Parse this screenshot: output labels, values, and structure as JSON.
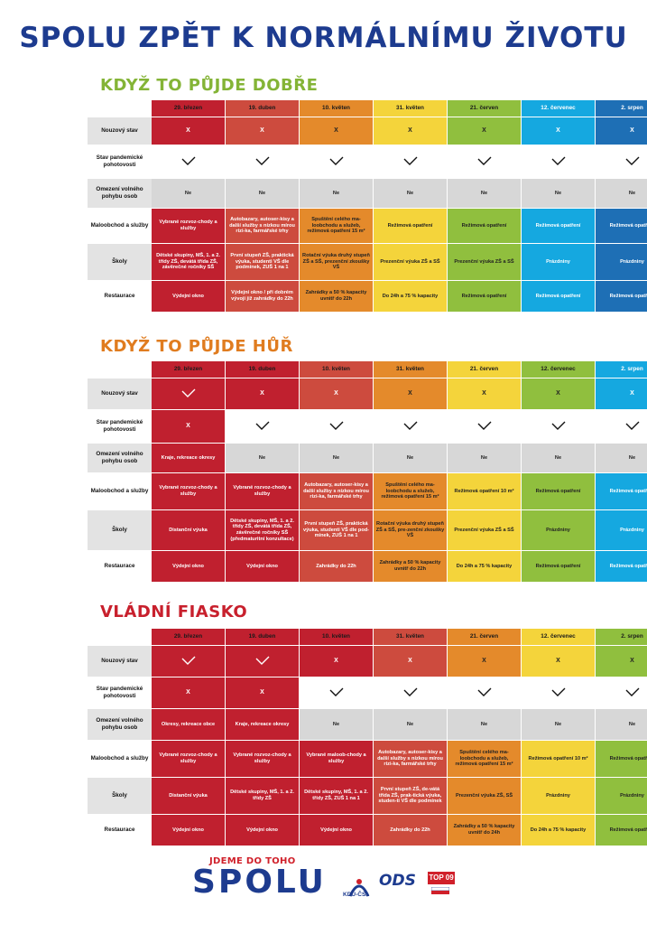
{
  "title": "SPOLU ZPĚT K NORMÁLNÍMU ŽIVOTU",
  "row_labels": [
    "Nouzový stav",
    "Stav pandemické pohotovosti",
    "Omezení volného pohybu osob",
    "Maloobchod a služby",
    "Školy",
    "Restaurace"
  ],
  "colors": {
    "red": "#c0202f",
    "brick": "#cd4b3e",
    "orange": "#e48a2b",
    "yellow": "#f4d43b",
    "green": "#90bf3e",
    "cyan": "#15a8e0",
    "blue": "#1e6fb5",
    "grey": "#d7d7d7",
    "title_blue": "#1d3b8f",
    "title_green": "#84b436",
    "title_orange": "#e07c1f",
    "title_red": "#c8202d"
  },
  "sections": [
    {
      "title": "KDYŽ TO PŮJDE DOBŘE",
      "title_color": "green",
      "columns": [
        {
          "label": "29. březen",
          "color": "red"
        },
        {
          "label": "19. duben",
          "color": "brick"
        },
        {
          "label": "10. květen",
          "color": "orange"
        },
        {
          "label": "31. květen",
          "color": "yellow"
        },
        {
          "label": "21. červen",
          "color": "green"
        },
        {
          "label": "12. červenec",
          "color": "cyan"
        },
        {
          "label": "2. srpen",
          "color": "blue"
        }
      ],
      "rows": [
        [
          {
            "t": "X",
            "c": "red"
          },
          {
            "t": "X",
            "c": "brick"
          },
          {
            "t": "X",
            "c": "orange"
          },
          {
            "t": "X",
            "c": "yellow"
          },
          {
            "t": "X",
            "c": "green"
          },
          {
            "t": "X",
            "c": "cyan"
          },
          {
            "t": "X",
            "c": "blue"
          }
        ],
        [
          {
            "t": "✓",
            "c": ""
          },
          {
            "t": "✓",
            "c": ""
          },
          {
            "t": "✓",
            "c": ""
          },
          {
            "t": "✓",
            "c": ""
          },
          {
            "t": "✓",
            "c": ""
          },
          {
            "t": "✓",
            "c": ""
          },
          {
            "t": "✓",
            "c": ""
          }
        ],
        [
          {
            "t": "Ne",
            "c": "grey"
          },
          {
            "t": "Ne",
            "c": "grey"
          },
          {
            "t": "Ne",
            "c": "grey"
          },
          {
            "t": "Ne",
            "c": "grey"
          },
          {
            "t": "Ne",
            "c": "grey"
          },
          {
            "t": "Ne",
            "c": "grey"
          },
          {
            "t": "Ne",
            "c": "grey"
          }
        ],
        [
          {
            "t": "Vybrané rozvoz-chody a služby",
            "c": "red"
          },
          {
            "t": "Autobazary, autoser-kisy a další služby s nízkou mírou rizi-ka, farmářské trhy",
            "c": "brick"
          },
          {
            "t": "Spuštění celého ma-loobchodu a služeb, režimová opatření 15 m²",
            "c": "orange"
          },
          {
            "t": "Režimová opatření",
            "c": "yellow"
          },
          {
            "t": "Režimová opatření",
            "c": "green"
          },
          {
            "t": "Režimová opatření",
            "c": "cyan"
          },
          {
            "t": "Režimová opatření",
            "c": "blue"
          }
        ],
        [
          {
            "t": "Dětské skupiny, MŠ, 1. a 2. třídy ZŠ, devátá třída ZŠ, závěrečné ročníky SŠ",
            "c": "red"
          },
          {
            "t": "První stupeň ZŠ, praktická výuka, studenti VŠ dle podmínek, ZUŠ 1 na 1",
            "c": "brick"
          },
          {
            "t": "Rotační výuka druhý stupeň ZŠ a SŠ, prezenční zkoušky VŠ",
            "c": "orange"
          },
          {
            "t": "Prezenční výuka ZŠ a SŠ",
            "c": "yellow"
          },
          {
            "t": "Prezenční výuka ZŠ a SŠ",
            "c": "green"
          },
          {
            "t": "Prázdniny",
            "c": "cyan"
          },
          {
            "t": "Prázdniny",
            "c": "blue"
          }
        ],
        [
          {
            "t": "Výdejní okno",
            "c": "red"
          },
          {
            "t": "Výdejní okno / při dobrém vývoji již zahrádky do 22h",
            "c": "brick"
          },
          {
            "t": "Zahrádky a 50 % kapacity uvnitř do 22h",
            "c": "orange"
          },
          {
            "t": "Do 24h a 75 % kapacity",
            "c": "yellow"
          },
          {
            "t": "Režimová opatření",
            "c": "green"
          },
          {
            "t": "Režimová opatření",
            "c": "cyan"
          },
          {
            "t": "Režimová opatření",
            "c": "blue"
          }
        ]
      ]
    },
    {
      "title": "KDYŽ TO PŮJDE HŮŘ",
      "title_color": "orange",
      "columns": [
        {
          "label": "29. březen",
          "color": "red"
        },
        {
          "label": "19. duben",
          "color": "red"
        },
        {
          "label": "10. květen",
          "color": "brick"
        },
        {
          "label": "31. květen",
          "color": "orange"
        },
        {
          "label": "21. červen",
          "color": "yellow"
        },
        {
          "label": "12. červenec",
          "color": "green"
        },
        {
          "label": "2. srpen",
          "color": "cyan"
        }
      ],
      "rows": [
        [
          {
            "t": "✓",
            "c": "red"
          },
          {
            "t": "X",
            "c": "red"
          },
          {
            "t": "X",
            "c": "brick"
          },
          {
            "t": "X",
            "c": "orange"
          },
          {
            "t": "X",
            "c": "yellow"
          },
          {
            "t": "X",
            "c": "green"
          },
          {
            "t": "X",
            "c": "cyan"
          }
        ],
        [
          {
            "t": "X",
            "c": "red"
          },
          {
            "t": "✓",
            "c": ""
          },
          {
            "t": "✓",
            "c": ""
          },
          {
            "t": "✓",
            "c": ""
          },
          {
            "t": "✓",
            "c": ""
          },
          {
            "t": "✓",
            "c": ""
          },
          {
            "t": "✓",
            "c": ""
          }
        ],
        [
          {
            "t": "Kraje, rekreace okresy",
            "c": "red"
          },
          {
            "t": "Ne",
            "c": "grey"
          },
          {
            "t": "Ne",
            "c": "grey"
          },
          {
            "t": "Ne",
            "c": "grey"
          },
          {
            "t": "Ne",
            "c": "grey"
          },
          {
            "t": "Ne",
            "c": "grey"
          },
          {
            "t": "Ne",
            "c": "grey"
          }
        ],
        [
          {
            "t": "Vybrané rozvoz-chody a služby",
            "c": "red"
          },
          {
            "t": "Vybrané rozvoz-chody a služby",
            "c": "red"
          },
          {
            "t": "Autobazary, autoser-kisy a další služby s nízkou mírou rizi-ka, farmářské trhy",
            "c": "brick"
          },
          {
            "t": "Spuštění celého ma-loobchodu a služeb, režimová opatření 15 m²",
            "c": "orange"
          },
          {
            "t": "Režimová opatření 10 m²",
            "c": "yellow"
          },
          {
            "t": "Režimová opatření",
            "c": "green"
          },
          {
            "t": "Režimová opatření",
            "c": "cyan"
          }
        ],
        [
          {
            "t": "Distanční výuka",
            "c": "red"
          },
          {
            "t": "Dětské skupiny, MŠ, 1. a 2. třídy ZŠ, devátá třída ZŠ, závěrečné ročníky SŠ (předmaturitní konzultace)",
            "c": "red"
          },
          {
            "t": "První stupeň ZŠ, praktická výuka, studenti VŠ dle pod-mínek, ZUŠ 1 na 1",
            "c": "brick"
          },
          {
            "t": "Rotační výuka druhý stupeň ZŠ a SŠ, pre-zenční zkoušky VŠ",
            "c": "orange"
          },
          {
            "t": "Prezenční výuka ZŠ a SŠ",
            "c": "yellow"
          },
          {
            "t": "Prázdniny",
            "c": "green"
          },
          {
            "t": "Prázdniny",
            "c": "cyan"
          }
        ],
        [
          {
            "t": "Výdejní okno",
            "c": "red"
          },
          {
            "t": "Výdejní okno",
            "c": "red"
          },
          {
            "t": "Zahrádky do 22h",
            "c": "brick"
          },
          {
            "t": "Zahrádky a 50 % kapacity uvnitř do 22h",
            "c": "orange"
          },
          {
            "t": "Do 24h a 75 % kapacity",
            "c": "yellow"
          },
          {
            "t": "Režimová opatření",
            "c": "green"
          },
          {
            "t": "Režimová opatření",
            "c": "cyan"
          }
        ]
      ]
    },
    {
      "title": "VLÁDNÍ FIASKO",
      "title_color": "red",
      "columns": [
        {
          "label": "29. březen",
          "color": "red"
        },
        {
          "label": "19. duben",
          "color": "red"
        },
        {
          "label": "10. květen",
          "color": "red"
        },
        {
          "label": "31. květen",
          "color": "brick"
        },
        {
          "label": "21. červen",
          "color": "orange"
        },
        {
          "label": "12. červenec",
          "color": "yellow"
        },
        {
          "label": "2. srpen",
          "color": "green"
        }
      ],
      "rows": [
        [
          {
            "t": "✓",
            "c": "red"
          },
          {
            "t": "✓",
            "c": "red"
          },
          {
            "t": "X",
            "c": "red"
          },
          {
            "t": "X",
            "c": "brick"
          },
          {
            "t": "X",
            "c": "orange"
          },
          {
            "t": "X",
            "c": "yellow"
          },
          {
            "t": "X",
            "c": "green"
          }
        ],
        [
          {
            "t": "X",
            "c": "red"
          },
          {
            "t": "X",
            "c": "red"
          },
          {
            "t": "✓",
            "c": ""
          },
          {
            "t": "✓",
            "c": ""
          },
          {
            "t": "✓",
            "c": ""
          },
          {
            "t": "✓",
            "c": ""
          },
          {
            "t": "✓",
            "c": ""
          }
        ],
        [
          {
            "t": "Okresy, rekreace obce",
            "c": "red"
          },
          {
            "t": "Kraje, rekreace okresy",
            "c": "red"
          },
          {
            "t": "Ne",
            "c": "grey"
          },
          {
            "t": "Ne",
            "c": "grey"
          },
          {
            "t": "Ne",
            "c": "grey"
          },
          {
            "t": "Ne",
            "c": "grey"
          },
          {
            "t": "Ne",
            "c": "grey"
          }
        ],
        [
          {
            "t": "Vybrané rozvoz-chody a služby",
            "c": "red"
          },
          {
            "t": "Vybrané rozvoz-chody a služby",
            "c": "red"
          },
          {
            "t": "Vybrané maloob-chody a služby",
            "c": "red"
          },
          {
            "t": "Autobazary, autoser-kisy a další služby s nízkou mírou rizi-ka, farmářské trhy",
            "c": "brick"
          },
          {
            "t": "Spuštění celého ma-loobchodu a služeb, režimová opatření 15 m²",
            "c": "orange"
          },
          {
            "t": "Režimová opatření 10 m²",
            "c": "yellow"
          },
          {
            "t": "Režimová opatření",
            "c": "green"
          }
        ],
        [
          {
            "t": "Distanční výuka",
            "c": "red"
          },
          {
            "t": "Dětské skupiny, MŠ, 1. a 2. třídy ZŠ",
            "c": "red"
          },
          {
            "t": "Dětské skupiny, MŠ, 1. a 2. třídy ZŠ, ZUŠ 1 na 1",
            "c": "red"
          },
          {
            "t": "První stupeň ZŠ, de-vátá třída ZŠ, prak-tická výuka, studen-ti VŠ dle podmínek",
            "c": "brick"
          },
          {
            "t": "Prezenční výuka ZŠ, SŠ",
            "c": "orange"
          },
          {
            "t": "Prázdniny",
            "c": "yellow"
          },
          {
            "t": "Prázdniny",
            "c": "green"
          }
        ],
        [
          {
            "t": "Výdejní okno",
            "c": "red"
          },
          {
            "t": "Výdejní okno",
            "c": "red"
          },
          {
            "t": "Výdejní okno",
            "c": "red"
          },
          {
            "t": "Zahrádky do 22h",
            "c": "brick"
          },
          {
            "t": "Zahrádky a 50 % kapacity uvnitř do 24h",
            "c": "orange"
          },
          {
            "t": "Do 24h a 75 % kapacity",
            "c": "yellow"
          },
          {
            "t": "Režimová opatření",
            "c": "green"
          }
        ]
      ]
    }
  ],
  "footer": {
    "slogan": "JDEME DO TOHO",
    "logo": "SPOLU",
    "party_kdu": "KDU-ČSL",
    "party_ods": "ODS",
    "party_top": "TOP 09"
  }
}
